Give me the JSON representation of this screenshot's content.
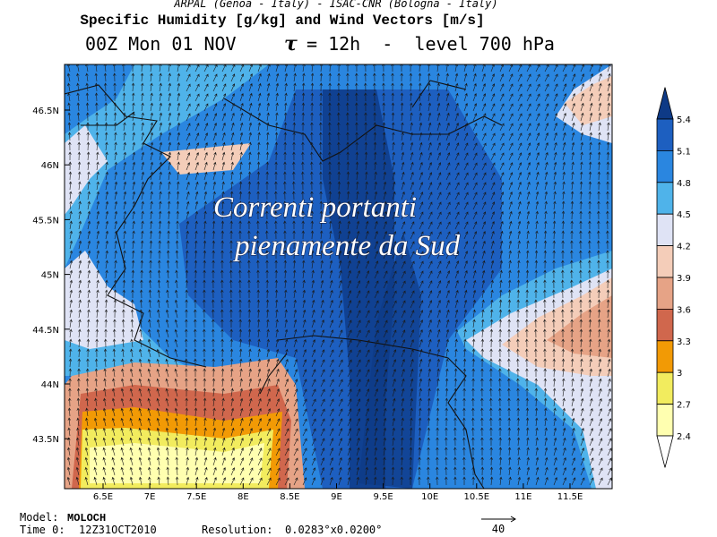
{
  "header": {
    "agencies": "ARPAL (Genoa - Italy)  -  ISAC-CNR (Bologna - Italy)",
    "title": "Specific Humidity [g/kg] and Wind Vectors [m/s]",
    "subtitle_time": "00Z Mon 01 NOV",
    "subtitle_tau": "τ",
    "subtitle_rest": "= 12h  -  level 700 hPa"
  },
  "map": {
    "lat_labels": [
      "46.5N",
      "46N",
      "45.5N",
      "45N",
      "44.5N",
      "44N",
      "43.5N"
    ],
    "lon_labels": [
      "6.5E",
      "7E",
      "7.5E",
      "8E",
      "8.5E",
      "9E",
      "9.5E",
      "10E",
      "10.5E",
      "11E",
      "11.5E"
    ],
    "annotation": [
      "Correnti portanti",
      "pienamente da Sud"
    ]
  },
  "colorbar": {
    "levels": [
      5.4,
      5.1,
      4.8,
      4.5,
      4.2,
      3.9,
      3.6,
      3.3,
      3,
      2.7,
      2.4
    ],
    "colors": [
      "#0e3a86",
      "#1d5fc0",
      "#2a86e0",
      "#4fb3ea",
      "#dfe3f5",
      "#f4cdb9",
      "#e6a386",
      "#d0674d",
      "#f29a05",
      "#f2ec5e",
      "#ffffb0",
      "#ffffff"
    ]
  },
  "footer": {
    "model_label": "Model:",
    "model": "MOLOCH",
    "time_label": "Time 0:",
    "time": "12Z31OCT2010",
    "resolution_label": "Resolution:",
    "resolution": "0.0283°x0.0200°",
    "vector_ref": 40
  }
}
